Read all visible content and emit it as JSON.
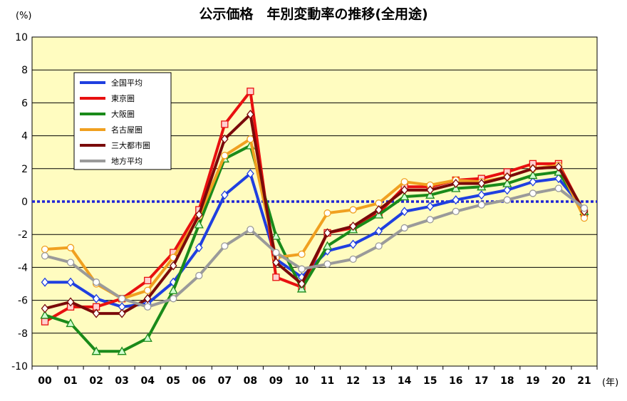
{
  "chart_data": {
    "type": "line",
    "title": "公示価格　年別変動率の推移(全用途)",
    "y_unit_label": "(%)",
    "x_unit_label": "(年)",
    "ylim": [
      -10,
      10
    ],
    "yticks": [
      10,
      8,
      6,
      4,
      2,
      0,
      -2,
      -4,
      -6,
      -8,
      -10
    ],
    "grid": true,
    "legend_position": "top-left",
    "background_color": "#fffcc0",
    "zero_line_color": "#1f24d6",
    "categories": [
      "00",
      "01",
      "02",
      "03",
      "04",
      "05",
      "06",
      "07",
      "08",
      "09",
      "10",
      "11",
      "12",
      "13",
      "14",
      "15",
      "16",
      "17",
      "18",
      "19",
      "20",
      "21"
    ],
    "series": [
      {
        "name": "全国平均",
        "color": "#1f3fe0",
        "marker": "diamond",
        "values": [
          -4.9,
          -4.9,
          -5.9,
          -6.4,
          -6.2,
          -4.9,
          -2.8,
          0.4,
          1.7,
          -3.5,
          -4.6,
          -3.0,
          -2.6,
          -1.8,
          -0.6,
          -0.3,
          0.1,
          0.4,
          0.7,
          1.2,
          1.4,
          -0.5
        ]
      },
      {
        "name": "東京圏",
        "color": "#e81010",
        "marker": "square",
        "values": [
          -7.3,
          -6.4,
          -6.4,
          -5.9,
          -4.8,
          -3.1,
          -0.5,
          4.7,
          6.7,
          -4.6,
          -5.2,
          -1.9,
          -1.6,
          -0.7,
          0.9,
          0.9,
          1.3,
          1.4,
          1.8,
          2.3,
          2.3,
          -0.7
        ]
      },
      {
        "name": "大阪圏",
        "color": "#1a8a1a",
        "marker": "triangle",
        "values": [
          -6.9,
          -7.4,
          -9.1,
          -9.1,
          -8.3,
          -5.4,
          -1.4,
          2.6,
          3.4,
          -2.1,
          -5.3,
          -2.7,
          -1.7,
          -0.8,
          0.3,
          0.4,
          0.8,
          0.9,
          1.1,
          1.6,
          1.8,
          -0.6
        ]
      },
      {
        "name": "名古屋圏",
        "color": "#f0a020",
        "marker": "circle",
        "values": [
          -2.9,
          -2.8,
          -5.0,
          -5.9,
          -5.4,
          -3.4,
          -0.9,
          2.8,
          3.8,
          -3.4,
          -3.2,
          -0.7,
          -0.5,
          -0.1,
          1.2,
          1.0,
          1.3,
          1.2,
          1.5,
          2.0,
          2.2,
          -1.0
        ]
      },
      {
        "name": "三大都市圏",
        "color": "#7a0a0a",
        "marker": "diamond",
        "values": [
          -6.5,
          -6.1,
          -6.8,
          -6.8,
          -5.9,
          -3.9,
          -0.8,
          3.8,
          5.3,
          -3.7,
          -5.0,
          -1.9,
          -1.5,
          -0.5,
          0.7,
          0.7,
          1.1,
          1.1,
          1.5,
          2.0,
          2.1,
          -0.6
        ]
      },
      {
        "name": "地方平均",
        "color": "#9a9a9a",
        "marker": "circle",
        "values": [
          -3.3,
          -3.7,
          -4.9,
          -5.9,
          -6.4,
          -5.9,
          -4.5,
          -2.7,
          -1.7,
          -3.1,
          -4.1,
          -3.8,
          -3.5,
          -2.7,
          -1.6,
          -1.1,
          -0.6,
          -0.2,
          0.1,
          0.5,
          0.8,
          -0.4
        ]
      }
    ]
  }
}
